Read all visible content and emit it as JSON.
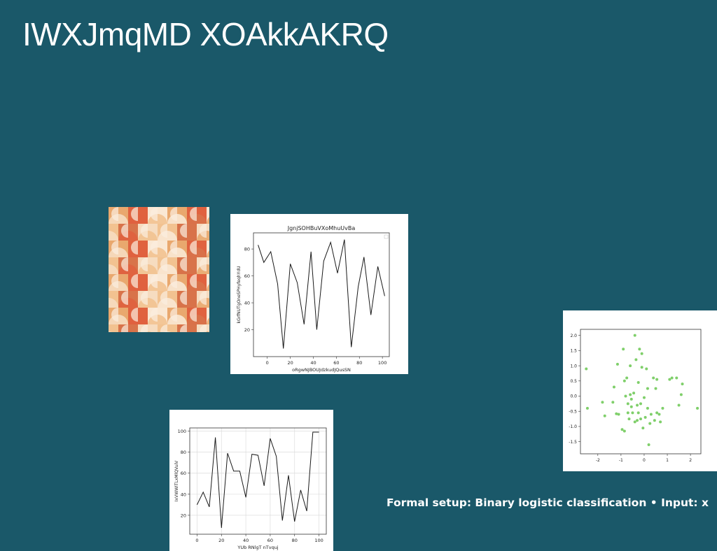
{
  "slide": {
    "title": "IWXJmqMD XOAkkAKRQ",
    "caption": "Formal setup: Binary logistic classification • Input: x"
  },
  "chart_data": [
    {
      "type": "line",
      "title": "JgnjSOHBuVXoMhuUvBa",
      "xlabel": "oRgwNJBOUJdzkudJQusSN",
      "ylabel": "kGrfNUTgOneSPHyfeqhYdU",
      "x": [
        -8,
        -3,
        3,
        9,
        14,
        20,
        26,
        32,
        38,
        43,
        49,
        55,
        61,
        67,
        73,
        79,
        84,
        90,
        96,
        102
      ],
      "y": [
        83,
        70,
        78,
        54,
        6,
        69,
        55,
        24,
        78,
        20,
        71,
        85,
        62,
        87,
        7,
        52,
        74,
        31,
        67,
        45
      ],
      "xlim": [
        -12,
        106
      ],
      "ylim": [
        0,
        92
      ],
      "xticks": [
        0,
        20,
        40,
        60,
        80,
        100
      ],
      "yticks": [
        20,
        40,
        60,
        80
      ],
      "grid": false,
      "legend": "top-right"
    },
    {
      "type": "scatter",
      "title": "",
      "xlabel": "",
      "ylabel": "",
      "color": "#7fcf6a",
      "points": [
        [
          -2.5,
          0.9
        ],
        [
          -2.45,
          -0.4
        ],
        [
          -1.8,
          -0.2
        ],
        [
          -1.7,
          -0.65
        ],
        [
          -1.35,
          -0.2
        ],
        [
          -1.3,
          0.3
        ],
        [
          -1.2,
          -0.58
        ],
        [
          -1.15,
          1.05
        ],
        [
          -1.1,
          -0.6
        ],
        [
          -0.95,
          -1.1
        ],
        [
          -0.9,
          1.55
        ],
        [
          -0.85,
          -1.15
        ],
        [
          -0.85,
          0.5
        ],
        [
          -0.8,
          0.0
        ],
        [
          -0.75,
          0.6
        ],
        [
          -0.7,
          -0.25
        ],
        [
          -0.7,
          -0.55
        ],
        [
          -0.65,
          -0.75
        ],
        [
          -0.6,
          1.0
        ],
        [
          -0.6,
          0.05
        ],
        [
          -0.55,
          -0.1
        ],
        [
          -0.55,
          -0.35
        ],
        [
          -0.5,
          -0.55
        ],
        [
          -0.45,
          0.1
        ],
        [
          -0.4,
          -0.85
        ],
        [
          -0.4,
          2.0
        ],
        [
          -0.35,
          1.2
        ],
        [
          -0.3,
          -0.3
        ],
        [
          -0.3,
          -0.8
        ],
        [
          -0.25,
          0.45
        ],
        [
          -0.25,
          -0.55
        ],
        [
          -0.2,
          1.55
        ],
        [
          -0.15,
          -0.75
        ],
        [
          -0.15,
          -0.25
        ],
        [
          -0.1,
          1.4
        ],
        [
          -0.1,
          0.95
        ],
        [
          -0.05,
          -1.05
        ],
        [
          0.0,
          -0.05
        ],
        [
          0.05,
          -0.7
        ],
        [
          0.1,
          0.9
        ],
        [
          0.15,
          0.25
        ],
        [
          0.15,
          -0.4
        ],
        [
          0.2,
          -1.6
        ],
        [
          0.25,
          -0.9
        ],
        [
          0.3,
          -0.6
        ],
        [
          0.4,
          0.6
        ],
        [
          0.45,
          -0.8
        ],
        [
          0.5,
          0.25
        ],
        [
          0.55,
          0.55
        ],
        [
          0.55,
          -0.55
        ],
        [
          0.65,
          -0.6
        ],
        [
          0.7,
          -0.85
        ],
        [
          0.8,
          -0.4
        ],
        [
          1.1,
          0.55
        ],
        [
          1.2,
          0.6
        ],
        [
          1.4,
          0.6
        ],
        [
          1.5,
          -0.3
        ],
        [
          1.6,
          0.05
        ],
        [
          1.65,
          0.4
        ],
        [
          2.3,
          -0.4
        ]
      ],
      "xlim": [
        -2.75,
        2.45
      ],
      "ylim": [
        -1.9,
        2.2
      ],
      "xticks": [
        -2,
        -1,
        0,
        1,
        2
      ],
      "yticks": [
        -1.5,
        -1.0,
        -0.5,
        0.0,
        0.5,
        1.0,
        1.5,
        2.0
      ],
      "grid": false
    },
    {
      "type": "line",
      "title": "",
      "xlabel": "YUb RNlgT nTvquj",
      "ylabel": "IxVWWITLxMlQVuiV",
      "x": [
        0,
        5,
        10,
        15,
        20,
        25,
        30,
        35,
        40,
        45,
        50,
        55,
        60,
        65,
        70,
        75,
        80,
        85,
        90,
        95,
        100
      ],
      "y": [
        30,
        42,
        28,
        94,
        8,
        79,
        62,
        62,
        37,
        78,
        77,
        48,
        93,
        76,
        15,
        58,
        14,
        44,
        24,
        99,
        99
      ],
      "xlim": [
        -6,
        106
      ],
      "ylim": [
        2,
        103
      ],
      "xticks": [
        0,
        20,
        40,
        60,
        80,
        100
      ],
      "yticks": [
        20,
        40,
        60,
        80,
        100
      ],
      "grid": true
    }
  ]
}
